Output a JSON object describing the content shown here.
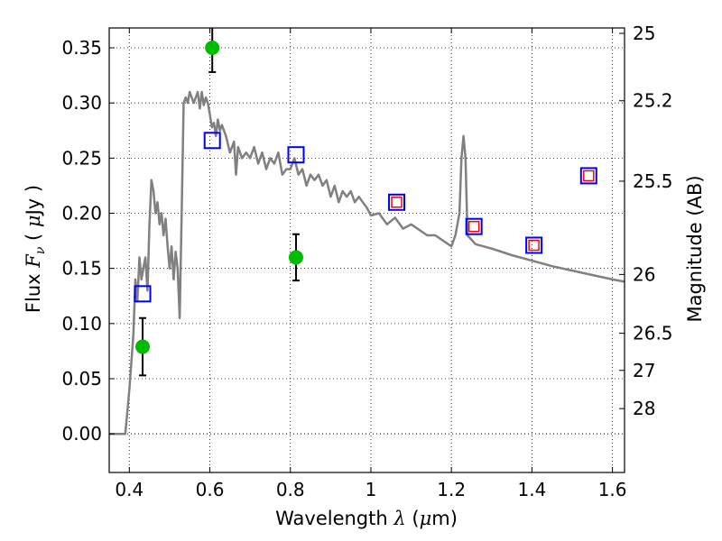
{
  "chart_data": {
    "type": "line",
    "xlabel": {
      "text": "Wavelength",
      "symbol": "λ",
      "unit_open": "(",
      "unit_mu": "μ",
      "unit_rest": "m)"
    },
    "ylabel": {
      "text": "Flux",
      "symbol": "F",
      "sub": "ν",
      "unit_open": "(",
      "unit_mu": "μ",
      "unit_rest": "Jy )"
    },
    "y2label": "Magnitude (AB)",
    "xlim": [
      0.35,
      1.63
    ],
    "ylim": [
      -0.035,
      0.368
    ],
    "xticks": [
      0.4,
      0.6,
      0.8,
      1.0,
      1.2,
      1.4,
      1.6
    ],
    "xtick_labels": [
      "0.4",
      "0.6",
      "0.8",
      "1",
      "1.2",
      "1.4",
      "1.6"
    ],
    "yticks": [
      0.0,
      0.05,
      0.1,
      0.15,
      0.2,
      0.25,
      0.3,
      0.35
    ],
    "ytick_labels": [
      "0.00",
      "0.05",
      "0.10",
      "0.15",
      "0.20",
      "0.25",
      "0.30",
      "0.35"
    ],
    "y2ticks": [
      {
        "mag": 25,
        "label": "25"
      },
      {
        "mag": 25.2,
        "label": "25.2"
      },
      {
        "mag": 25.5,
        "label": "25.5"
      },
      {
        "mag": 26,
        "label": "26"
      },
      {
        "mag": 26.5,
        "label": "26.5"
      },
      {
        "mag": 27,
        "label": "27"
      },
      {
        "mag": 28,
        "label": "28"
      }
    ],
    "grid": true,
    "colors": {
      "sed": "#808080",
      "observed": "#00bb00",
      "model_outer": "#0000ff",
      "model_inner": "#ff0000",
      "errorbar": "#000000",
      "zero_line": "#000000"
    },
    "sed": {
      "x": [
        0.35,
        0.39,
        0.395,
        0.4,
        0.41,
        0.415,
        0.42,
        0.425,
        0.43,
        0.44,
        0.445,
        0.45,
        0.455,
        0.46,
        0.465,
        0.47,
        0.475,
        0.48,
        0.485,
        0.49,
        0.495,
        0.5,
        0.505,
        0.51,
        0.515,
        0.52,
        0.525,
        0.53,
        0.535,
        0.54,
        0.545,
        0.55,
        0.56,
        0.57,
        0.575,
        0.58,
        0.585,
        0.59,
        0.595,
        0.6,
        0.605,
        0.61,
        0.615,
        0.62,
        0.625,
        0.63,
        0.64,
        0.65,
        0.66,
        0.665,
        0.67,
        0.675,
        0.68,
        0.69,
        0.7,
        0.71,
        0.72,
        0.73,
        0.74,
        0.75,
        0.76,
        0.77,
        0.78,
        0.79,
        0.8,
        0.81,
        0.82,
        0.83,
        0.84,
        0.85,
        0.86,
        0.87,
        0.88,
        0.89,
        0.9,
        0.91,
        0.92,
        0.93,
        0.94,
        0.95,
        0.96,
        0.97,
        0.98,
        0.99,
        1.0,
        1.02,
        1.04,
        1.06,
        1.08,
        1.1,
        1.12,
        1.14,
        1.16,
        1.18,
        1.2,
        1.21,
        1.22,
        1.225,
        1.23,
        1.235,
        1.24,
        1.26,
        1.3,
        1.35,
        1.4,
        1.45,
        1.5,
        1.55,
        1.6,
        1.63
      ],
      "y": [
        0.0,
        0.0,
        0.02,
        0.04,
        0.09,
        0.14,
        0.12,
        0.16,
        0.14,
        0.16,
        0.13,
        0.19,
        0.23,
        0.22,
        0.2,
        0.21,
        0.19,
        0.2,
        0.18,
        0.195,
        0.17,
        0.15,
        0.17,
        0.14,
        0.165,
        0.15,
        0.105,
        0.2,
        0.3,
        0.305,
        0.3,
        0.31,
        0.3,
        0.31,
        0.295,
        0.31,
        0.298,
        0.305,
        0.3,
        0.29,
        0.278,
        0.282,
        0.27,
        0.285,
        0.275,
        0.28,
        0.27,
        0.255,
        0.265,
        0.235,
        0.26,
        0.255,
        0.25,
        0.255,
        0.25,
        0.26,
        0.245,
        0.255,
        0.24,
        0.25,
        0.245,
        0.255,
        0.235,
        0.24,
        0.24,
        0.25,
        0.235,
        0.24,
        0.225,
        0.235,
        0.23,
        0.235,
        0.225,
        0.23,
        0.215,
        0.225,
        0.21,
        0.22,
        0.215,
        0.22,
        0.21,
        0.215,
        0.21,
        0.205,
        0.198,
        0.2,
        0.19,
        0.196,
        0.186,
        0.19,
        0.185,
        0.18,
        0.18,
        0.175,
        0.17,
        0.18,
        0.2,
        0.25,
        0.27,
        0.25,
        0.18,
        0.172,
        0.168,
        0.162,
        0.157,
        0.152,
        0.148,
        0.144,
        0.14,
        0.138
      ]
    },
    "observed": [
      {
        "x": 0.433,
        "y": 0.079,
        "err": 0.026
      },
      {
        "x": 0.606,
        "y": 0.35,
        "err": 0.022
      },
      {
        "x": 0.814,
        "y": 0.16,
        "err": 0.021
      }
    ],
    "model_points": [
      {
        "x": 0.433,
        "y": 0.127,
        "inner": false
      },
      {
        "x": 0.606,
        "y": 0.266,
        "inner": false
      },
      {
        "x": 0.814,
        "y": 0.253,
        "inner": false
      },
      {
        "x": 1.064,
        "y": 0.21,
        "inner": true
      },
      {
        "x": 1.256,
        "y": 0.188,
        "inner": true
      },
      {
        "x": 1.405,
        "y": 0.171,
        "inner": true
      },
      {
        "x": 1.541,
        "y": 0.234,
        "inner": true
      }
    ]
  }
}
